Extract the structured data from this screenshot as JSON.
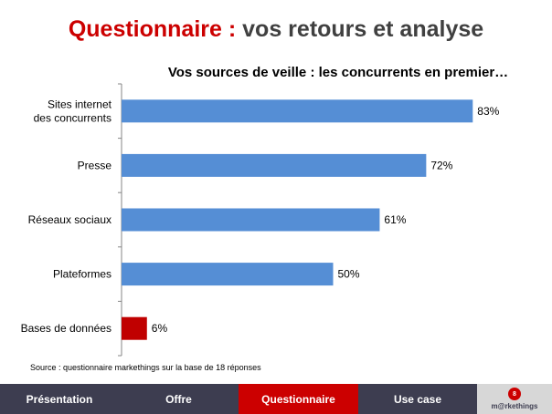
{
  "slide": {
    "title_accent": "Questionnaire :",
    "title_rest": "vos retours et analyse",
    "source": "Source : questionnaire markethings sur la base de 18 réponses"
  },
  "nav": {
    "items": [
      {
        "label": "Présentation",
        "active": false
      },
      {
        "label": "Offre",
        "active": false
      },
      {
        "label": "Questionnaire",
        "active": true
      },
      {
        "label": "Use case",
        "active": false
      }
    ],
    "logo_badge": "8",
    "logo_text": "m@rkethings"
  },
  "colors": {
    "accent": "#cc0000",
    "bar": "#558ed5",
    "nav_bg": "#3d3d50"
  },
  "chart_data": {
    "type": "bar",
    "orientation": "horizontal",
    "title": "Vos sources de veille : les concurrents en premier…",
    "categories": [
      [
        "Sites internet",
        "des concurrents"
      ],
      [
        "Presse"
      ],
      [
        "Réseaux sociaux"
      ],
      [
        "Plateformes"
      ],
      [
        "Bases de données"
      ]
    ],
    "values": [
      83,
      72,
      61,
      50,
      6
    ],
    "value_labels": [
      "83%",
      "72%",
      "61%",
      "50%",
      "6%"
    ],
    "bar_colors": [
      "#558ed5",
      "#558ed5",
      "#558ed5",
      "#558ed5",
      "#c00000"
    ],
    "xlim": [
      0,
      100
    ],
    "grid": false,
    "legend": false
  }
}
